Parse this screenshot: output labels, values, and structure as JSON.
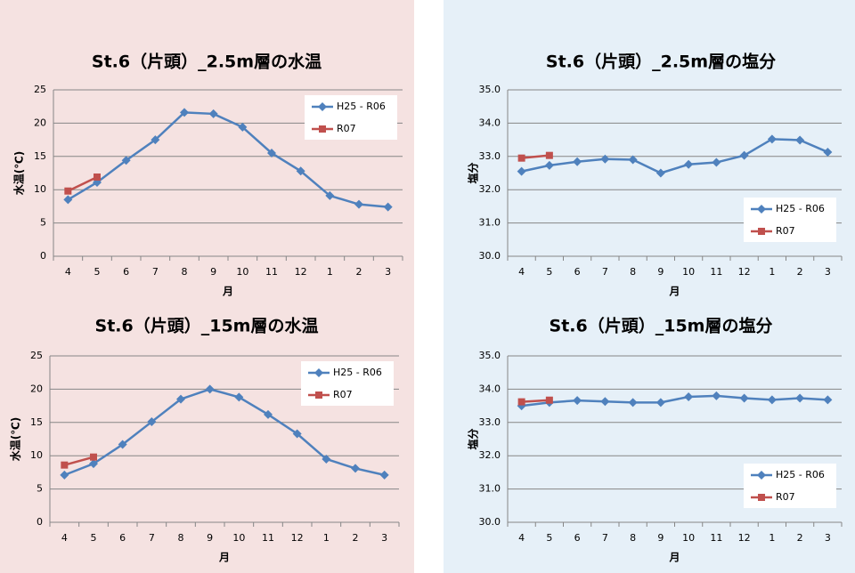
{
  "chart_data": [
    {
      "type": "line",
      "title": "St.6（片頭）_2.5m層の水温",
      "xlabel": "月",
      "ylabel": "水温(℃)",
      "categories": [
        "4",
        "5",
        "6",
        "7",
        "8",
        "9",
        "10",
        "11",
        "12",
        "1",
        "2",
        "3"
      ],
      "ylim": [
        0,
        25
      ],
      "yticks": [
        0,
        5,
        10,
        15,
        20,
        25
      ],
      "grid": true,
      "legend": "upper right",
      "series": [
        {
          "name": "H25 - R06",
          "color": "#4f81bd",
          "marker": "diamond",
          "values": [
            8.5,
            11.1,
            14.4,
            17.5,
            21.6,
            21.4,
            19.4,
            15.5,
            12.8,
            9.1,
            7.8,
            7.4
          ]
        },
        {
          "name": "R07",
          "color": "#c0504d",
          "marker": "square",
          "values": [
            9.8,
            11.9,
            null,
            null,
            null,
            null,
            null,
            null,
            null,
            null,
            null,
            null
          ]
        }
      ]
    },
    {
      "type": "line",
      "title": "St.6（片頭）_2.5m層の塩分",
      "xlabel": "月",
      "ylabel": "塩分",
      "categories": [
        "4",
        "5",
        "6",
        "7",
        "8",
        "9",
        "10",
        "11",
        "12",
        "1",
        "2",
        "3"
      ],
      "ylim": [
        30,
        35
      ],
      "yticks": [
        {
          "value": 30,
          "label": "30.0"
        },
        {
          "value": 31,
          "label": "31.0"
        },
        {
          "value": 32,
          "label": "32.0"
        },
        {
          "value": 33,
          "label": "33.0"
        },
        {
          "value": 34,
          "label": "34.0"
        },
        {
          "value": 35,
          "label": "35.0"
        }
      ],
      "grid": true,
      "legend": "lower right",
      "series": [
        {
          "name": "H25 - R06",
          "color": "#4f81bd",
          "marker": "diamond",
          "values": [
            32.55,
            32.73,
            32.84,
            32.92,
            32.9,
            32.5,
            32.76,
            32.82,
            33.03,
            33.52,
            33.49,
            33.13
          ]
        },
        {
          "name": "R07",
          "color": "#c0504d",
          "marker": "square",
          "values": [
            32.95,
            33.03,
            null,
            null,
            null,
            null,
            null,
            null,
            null,
            null,
            null,
            null
          ]
        }
      ]
    },
    {
      "type": "line",
      "title": "St.6（片頭）_15m層の水温",
      "xlabel": "月",
      "ylabel": "水温(℃)",
      "categories": [
        "4",
        "5",
        "6",
        "7",
        "8",
        "9",
        "10",
        "11",
        "12",
        "1",
        "2",
        "3"
      ],
      "ylim": [
        0,
        25
      ],
      "yticks": [
        0,
        5,
        10,
        15,
        20,
        25
      ],
      "grid": true,
      "legend": "upper right",
      "series": [
        {
          "name": "H25 - R06",
          "color": "#4f81bd",
          "marker": "diamond",
          "values": [
            7.1,
            8.8,
            11.7,
            15.1,
            18.5,
            20.0,
            18.8,
            16.2,
            13.3,
            9.5,
            8.1,
            7.1
          ]
        },
        {
          "name": "R07",
          "color": "#c0504d",
          "marker": "square",
          "values": [
            8.6,
            9.8,
            null,
            null,
            null,
            null,
            null,
            null,
            null,
            null,
            null,
            null
          ]
        }
      ]
    },
    {
      "type": "line",
      "title": "St.6（片頭）_15m層の塩分",
      "xlabel": "月",
      "ylabel": "塩分",
      "categories": [
        "4",
        "5",
        "6",
        "7",
        "8",
        "9",
        "10",
        "11",
        "12",
        "1",
        "2",
        "3"
      ],
      "ylim": [
        30,
        35
      ],
      "yticks": [
        {
          "value": 30,
          "label": "30.0"
        },
        {
          "value": 31,
          "label": "31.0"
        },
        {
          "value": 32,
          "label": "32.0"
        },
        {
          "value": 33,
          "label": "33.0"
        },
        {
          "value": 34,
          "label": "34.0"
        },
        {
          "value": 35,
          "label": "35.0"
        }
      ],
      "grid": true,
      "legend": "lower right",
      "series": [
        {
          "name": "H25 - R06",
          "color": "#4f81bd",
          "marker": "diamond",
          "values": [
            33.5,
            33.6,
            33.66,
            33.63,
            33.6,
            33.6,
            33.77,
            33.8,
            33.73,
            33.68,
            33.73,
            33.68
          ]
        },
        {
          "name": "R07",
          "color": "#c0504d",
          "marker": "square",
          "values": [
            33.62,
            33.67,
            null,
            null,
            null,
            null,
            null,
            null,
            null,
            null,
            null,
            null
          ]
        }
      ]
    }
  ]
}
